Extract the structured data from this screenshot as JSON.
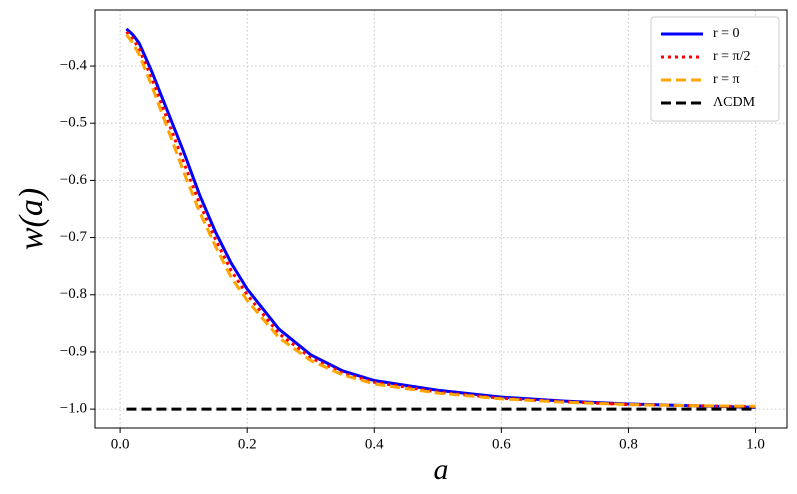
{
  "chart_data": {
    "type": "line",
    "xlabel": "a",
    "ylabel": "w(a)",
    "x": [
      0.01,
      0.02,
      0.03,
      0.05,
      0.075,
      0.1,
      0.125,
      0.15,
      0.175,
      0.2,
      0.25,
      0.3,
      0.35,
      0.4,
      0.5,
      0.6,
      0.7,
      0.8,
      0.9,
      1.0
    ],
    "series": [
      {
        "name": "r = 0",
        "color": "#0000ff",
        "linestyle": "solid",
        "values": [
          -0.335,
          -0.345,
          -0.36,
          -0.41,
          -0.48,
          -0.55,
          -0.625,
          -0.69,
          -0.745,
          -0.79,
          -0.86,
          -0.905,
          -0.933,
          -0.95,
          -0.967,
          -0.979,
          -0.986,
          -0.991,
          -0.994,
          -0.997
        ]
      },
      {
        "name": "r = π/2",
        "color": "#ff0000",
        "linestyle": "dotted",
        "values": [
          -0.34,
          -0.352,
          -0.37,
          -0.422,
          -0.495,
          -0.568,
          -0.64,
          -0.703,
          -0.758,
          -0.8,
          -0.868,
          -0.91,
          -0.937,
          -0.953,
          -0.97,
          -0.981,
          -0.987,
          -0.992,
          -0.994,
          -0.996
        ]
      },
      {
        "name": "r = π",
        "color": "#ffa500",
        "linestyle": "dashed",
        "values": [
          -0.345,
          -0.36,
          -0.38,
          -0.435,
          -0.51,
          -0.585,
          -0.655,
          -0.715,
          -0.77,
          -0.81,
          -0.875,
          -0.915,
          -0.94,
          -0.956,
          -0.972,
          -0.982,
          -0.988,
          -0.992,
          -0.994,
          -0.995
        ]
      },
      {
        "name": "ΛCDM",
        "color": "#000000",
        "linestyle": "dashed",
        "values": [
          -1,
          -1,
          -1,
          -1,
          -1,
          -1,
          -1,
          -1,
          -1,
          -1,
          -1,
          -1,
          -1,
          -1,
          -1,
          -1,
          -1,
          -1,
          -1,
          -1
        ]
      }
    ],
    "xlim": [
      -0.0395,
      1.0495
    ],
    "ylim": [
      -1.033,
      -0.302
    ],
    "xticks": [
      {
        "value": 0,
        "label": "0.0"
      },
      {
        "value": 0.2,
        "label": "0.2"
      },
      {
        "value": 0.4,
        "label": "0.4"
      },
      {
        "value": 0.6,
        "label": "0.6"
      },
      {
        "value": 0.8,
        "label": "0.8"
      },
      {
        "value": 1,
        "label": "1.0"
      }
    ],
    "yticks": [
      {
        "value": -0.4,
        "label": "−0.4"
      },
      {
        "value": -0.5,
        "label": "−0.5"
      },
      {
        "value": -0.6,
        "label": "−0.6"
      },
      {
        "value": -0.7,
        "label": "−0.7"
      },
      {
        "value": -0.8,
        "label": "−0.8"
      },
      {
        "value": -0.9,
        "label": "−0.9"
      },
      {
        "value": -1,
        "label": "−1.0"
      }
    ],
    "grid": true,
    "legend": "upper right"
  }
}
